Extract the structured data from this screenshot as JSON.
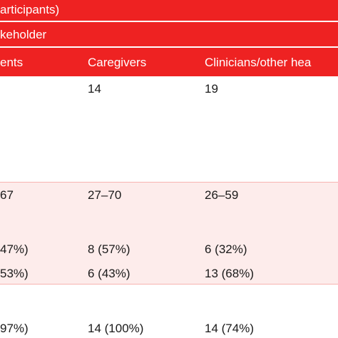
{
  "table": {
    "title_row": "articipants)",
    "group_row": "keholder",
    "header": {
      "col1": "ents",
      "col2": "Caregivers",
      "col3": "Clinicians/other hea"
    },
    "rows": [
      {
        "col1": "",
        "col2": "14",
        "col3": "19"
      },
      {
        "col1": "67",
        "col2": "27–70",
        "col3": "26–59"
      },
      {
        "col1": "47%)",
        "col2": "8 (57%)",
        "col3": "6 (32%)"
      },
      {
        "col1": "53%)",
        "col2": "6 (43%)",
        "col3": "13 (68%)"
      },
      {
        "col1": "97%)",
        "col2": "14 (100%)",
        "col3": "14 (74%)"
      }
    ]
  },
  "colors": {
    "header_red": "#ee2222",
    "band_pink": "#fdeceb"
  }
}
